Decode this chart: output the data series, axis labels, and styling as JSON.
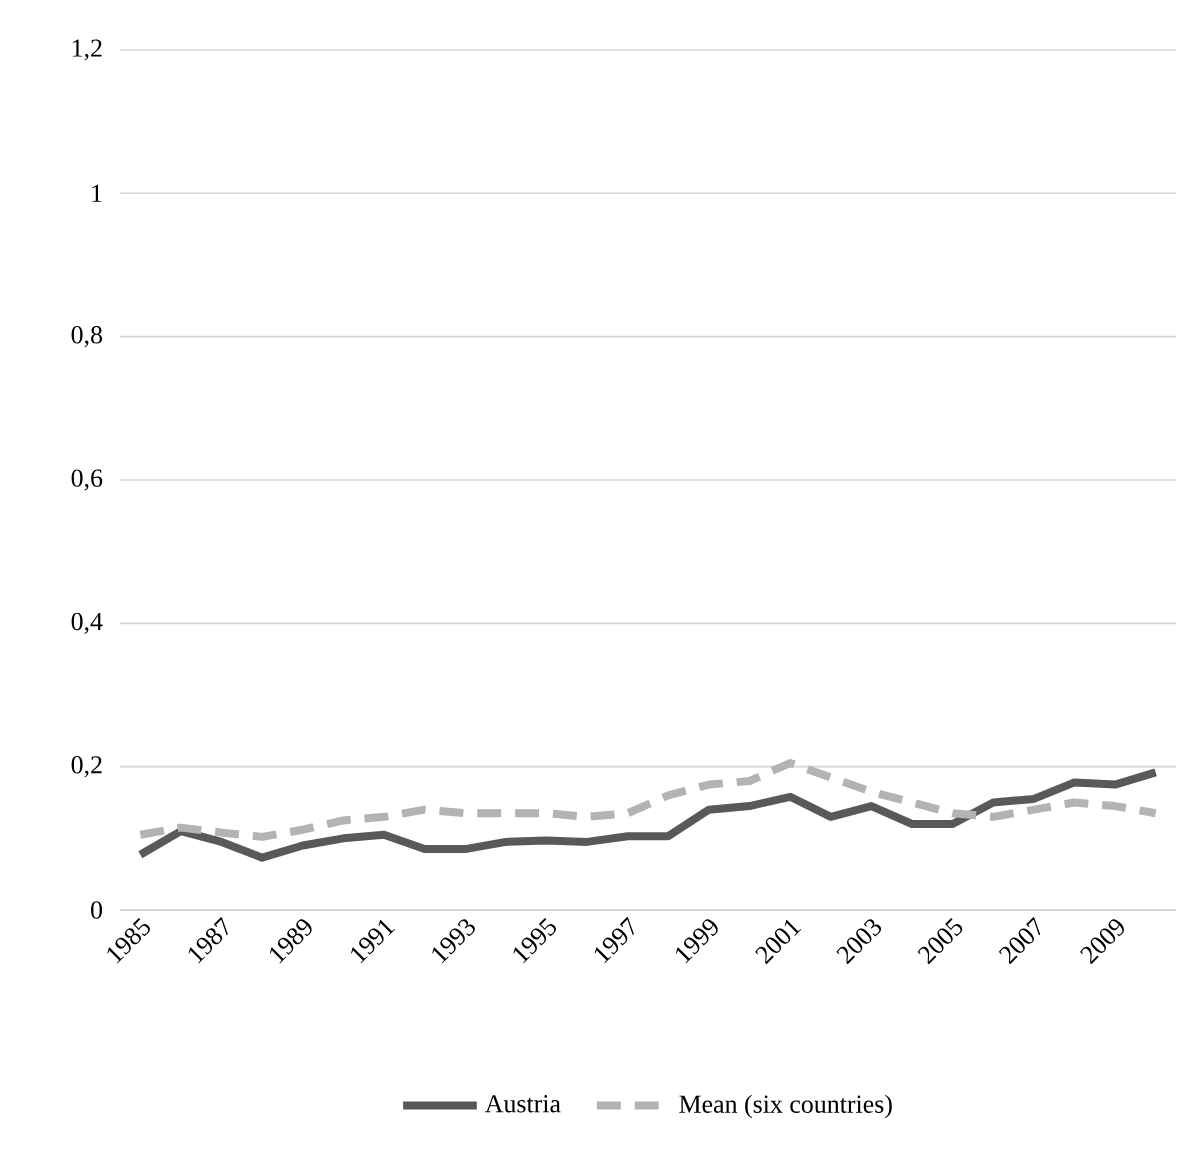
{
  "chart_data": {
    "type": "line",
    "categories": [
      "1985",
      null,
      "1987",
      null,
      "1989",
      null,
      "1991",
      null,
      "1993",
      null,
      "1995",
      null,
      "1997",
      null,
      "1999",
      null,
      "2001",
      null,
      "2003",
      null,
      "2005",
      null,
      "2007",
      null,
      "2009",
      null
    ],
    "series": [
      {
        "name": "Austria",
        "color": "#595959",
        "line_style": "solid",
        "values": [
          0.077,
          0.11,
          0.095,
          0.073,
          0.09,
          0.1,
          0.105,
          0.085,
          0.085,
          0.095,
          0.097,
          0.095,
          0.103,
          0.103,
          0.14,
          0.145,
          0.158,
          0.13,
          0.145,
          0.12,
          0.12,
          0.15,
          0.155,
          0.178,
          0.175,
          0.192
        ]
      },
      {
        "name": "Mean (six countries)",
        "color": "#b3b3b3",
        "line_style": "dashed",
        "values": [
          0.105,
          0.115,
          0.108,
          0.102,
          0.112,
          0.125,
          0.13,
          0.14,
          0.135,
          0.135,
          0.135,
          0.13,
          0.135,
          0.16,
          0.175,
          0.18,
          0.205,
          0.185,
          0.165,
          0.15,
          0.135,
          0.13,
          0.14,
          0.15,
          0.145,
          0.135
        ]
      }
    ],
    "ylim": [
      0,
      1.2
    ],
    "yticks": [
      0,
      {
        "value": 0.2,
        "label": "0,2"
      },
      {
        "value": 0.4,
        "label": "0,4"
      },
      {
        "value": 0.6,
        "label": "0,6"
      },
      {
        "value": 0.8,
        "label": "0,8"
      },
      1,
      {
        "value": 1.2,
        "label": "1,2"
      }
    ],
    "grid": "y",
    "legend": "bottom",
    "marker": "none"
  }
}
